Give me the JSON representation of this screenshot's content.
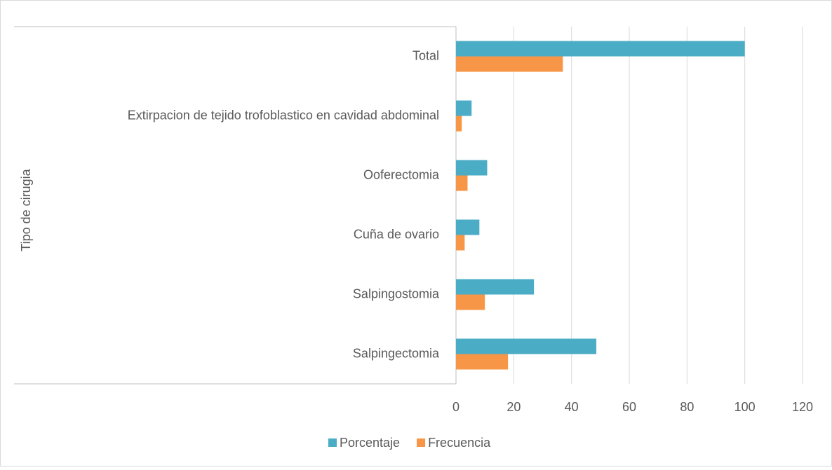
{
  "chart_data": {
    "type": "bar",
    "orientation": "horizontal",
    "y_axis_label": "Tipo de cirugia",
    "categories": [
      "Salpingectomia",
      "Salpingostomia",
      "Cuña de ovario",
      "Ooferectomia",
      "Extirpacion de tejido trofoblastico en cavidad abdominal",
      "Total"
    ],
    "series": [
      {
        "name": "Porcentaje",
        "color": "#4bacc6",
        "values": [
          48.6,
          27,
          8.1,
          10.8,
          5.4,
          100
        ]
      },
      {
        "name": "Frecuencia",
        "color": "#f79646",
        "values": [
          18,
          10,
          3,
          4,
          2,
          37
        ]
      }
    ],
    "xlim": [
      0,
      120
    ],
    "xticks": [
      0,
      20,
      40,
      60,
      80,
      100,
      120
    ],
    "grid": true,
    "legend": "bottom"
  }
}
